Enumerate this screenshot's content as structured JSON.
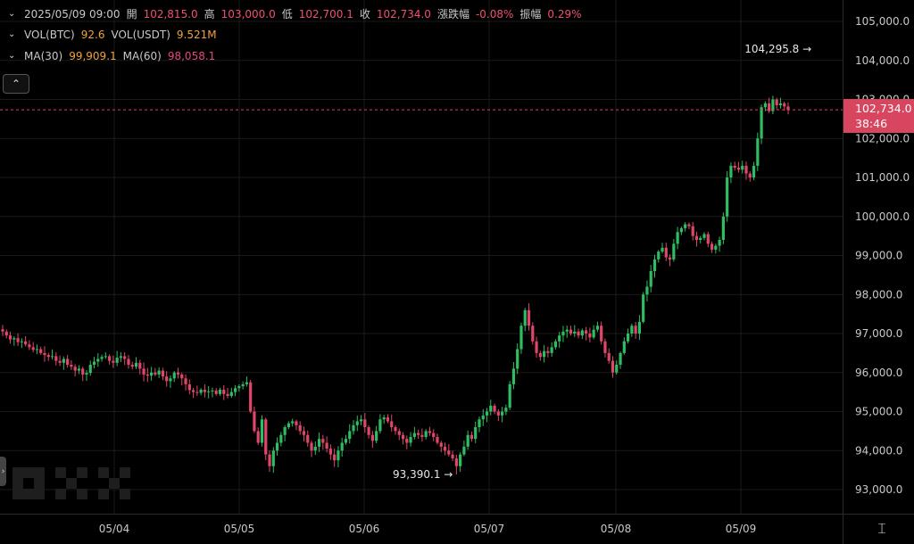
{
  "legend": {
    "datetime": "2025/05/09 09:00",
    "open_label": "開",
    "open_value": "102,815.0",
    "high_label": "高",
    "high_value": "103,000.0",
    "low_label": "低",
    "low_value": "102,700.1",
    "close_label": "收",
    "close_value": "102,734.0",
    "change_label": "漲跌幅",
    "change_value": "-0.08%",
    "amplitude_label": "振幅",
    "amplitude_value": "0.29%",
    "vol_btc_label": "VOL(BTC)",
    "vol_btc_value": "92.6",
    "vol_usdt_label": "VOL(USDT)",
    "vol_usdt_value": "9.521M",
    "ma30_label": "MA(30)",
    "ma30_value": "99,909.1",
    "ma60_label": "MA(60)",
    "ma60_value": "98,058.1"
  },
  "controls": {
    "collapse_icon": "chevron-up-icon",
    "side_handle_icon": "chevron-right-icon",
    "reset_icon": "vertical-fit-icon"
  },
  "price_tag": {
    "price": "102,734.0",
    "countdown": "38:46"
  },
  "colors": {
    "up": "#2ebd60",
    "down": "#e0466a",
    "background": "#000000",
    "grid": "#1a1a1a",
    "last_price_line": "#d8455f"
  },
  "chart_data": {
    "type": "candlestick",
    "y_ticks": [
      "105,000.0",
      "104,000.0",
      "103,000.0",
      "102,000.0",
      "101,000.0",
      "100,000.0",
      "99,000.0",
      "98,000.0",
      "97,000.0",
      "96,000.0",
      "95,000.0",
      "94,000.0",
      "93,000.0"
    ],
    "y_tick_values": [
      105000,
      104000,
      103000,
      102000,
      101000,
      100000,
      99000,
      98000,
      97000,
      96000,
      95000,
      94000,
      93000
    ],
    "ylim": [
      92500,
      105400
    ],
    "x_ticks": [
      "05/04",
      "05/05",
      "05/06",
      "05/07",
      "05/08",
      "05/09"
    ],
    "grid": true,
    "last_price": 102734.0,
    "annotations": [
      {
        "label": "104,295.8",
        "value": 104295.8
      },
      {
        "label": "93,390.1",
        "value": 93390.1
      }
    ],
    "closes": [
      97050,
      96950,
      96850,
      96880,
      96780,
      96800,
      96720,
      96650,
      96580,
      96600,
      96500,
      96450,
      96400,
      96420,
      96300,
      96250,
      96350,
      96200,
      96150,
      96050,
      96100,
      95950,
      95990,
      96200,
      96280,
      96350,
      96400,
      96420,
      96300,
      96250,
      96380,
      96420,
      96350,
      96200,
      96150,
      96250,
      96100,
      95950,
      95920,
      96000,
      95950,
      96050,
      95900,
      95780,
      95850,
      96000,
      95950,
      95850,
      95700,
      95550,
      95500,
      95480,
      95560,
      95500,
      95520,
      95540,
      95450,
      95560,
      95450,
      95400,
      95500,
      95600,
      95650,
      95700,
      95750,
      95000,
      94500,
      94200,
      94800,
      93900,
      93600,
      94000,
      94200,
      94400,
      94600,
      94700,
      94750,
      94650,
      94500,
      94400,
      94200,
      94000,
      94100,
      94300,
      94200,
      94050,
      93900,
      93750,
      94000,
      94200,
      94300,
      94500,
      94650,
      94750,
      94800,
      94600,
      94400,
      94250,
      94500,
      94800,
      94850,
      94750,
      94600,
      94500,
      94400,
      94300,
      94200,
      94350,
      94450,
      94400,
      94350,
      94500,
      94450,
      94350,
      94200,
      94100,
      94000,
      93900,
      93800,
      93600,
      93900,
      94100,
      94400,
      94300,
      94600,
      94800,
      94900,
      95000,
      95150,
      95000,
      94900,
      95000,
      95100,
      95700,
      96100,
      96600,
      97200,
      97600,
      97200,
      96800,
      96500,
      96400,
      96550,
      96500,
      96650,
      96800,
      96950,
      97050,
      97100,
      97000,
      97050,
      96950,
      97080,
      97000,
      96900,
      97100,
      97200,
      96800,
      96500,
      96300,
      96000,
      96200,
      96500,
      96800,
      97000,
      97200,
      97000,
      97300,
      98000,
      98200,
      98600,
      98900,
      99100,
      99200,
      98950,
      98900,
      99300,
      99600,
      99700,
      99800,
      99750,
      99500,
      99400,
      99450,
      99550,
      99300,
      99150,
      99250,
      99400,
      100000,
      101000,
      101300,
      101250,
      101200,
      101300,
      101100,
      101000,
      101300,
      102000,
      102800,
      102900,
      102700,
      103000,
      102850,
      102900,
      102820,
      102734
    ]
  }
}
